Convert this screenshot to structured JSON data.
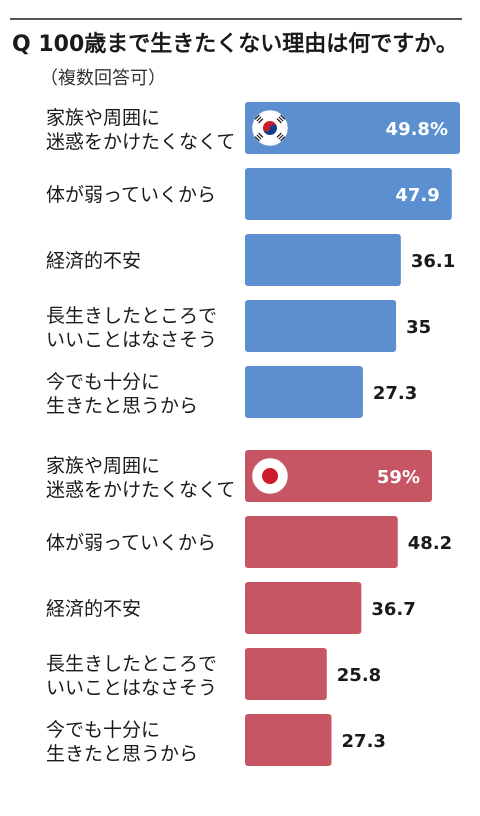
{
  "title": "Q 100歳まで生きたくない理由は何ですか。",
  "subtitle": "（複数回答可）",
  "colors": {
    "korea": "#5b8fd0",
    "japan": "#c65663",
    "flag_red": "#cd1d2c",
    "flag_blue": "#0f3f8c"
  },
  "chart_data": [
    {
      "type": "bar",
      "orientation": "horizontal",
      "flag": "south-korea-flag",
      "categories": [
        [
          "家族や周囲に",
          "迷惑をかけたくなくて"
        ],
        [
          "体が弱っていくから"
        ],
        [
          "経済的不安"
        ],
        [
          "長生きしたところで",
          "いいことはなさそう"
        ],
        [
          "今でも十分に",
          "生きたと思うから"
        ]
      ],
      "values": [
        49.8,
        47.9,
        36.1,
        35,
        27.3
      ],
      "value_labels": [
        "49.8%",
        "47.9",
        "36.1",
        "35",
        "27.3"
      ],
      "color": "#5b8fd0",
      "xlim": [
        0,
        52
      ]
    },
    {
      "type": "bar",
      "orientation": "horizontal",
      "flag": "japan-flag",
      "categories": [
        [
          "家族や周囲に",
          "迷惑をかけたくなくて"
        ],
        [
          "体が弱っていくから"
        ],
        [
          "経済的不安"
        ],
        [
          "長生きしたところで",
          "いいことはなさそう"
        ],
        [
          "今でも十分に",
          "生きたと思うから"
        ]
      ],
      "values": [
        59,
        48.2,
        36.7,
        25.8,
        27.3
      ],
      "value_labels": [
        "59%",
        "48.2",
        "36.7",
        "25.8",
        "27.3"
      ],
      "color": "#c65663",
      "xlim": [
        0,
        62
      ]
    }
  ]
}
